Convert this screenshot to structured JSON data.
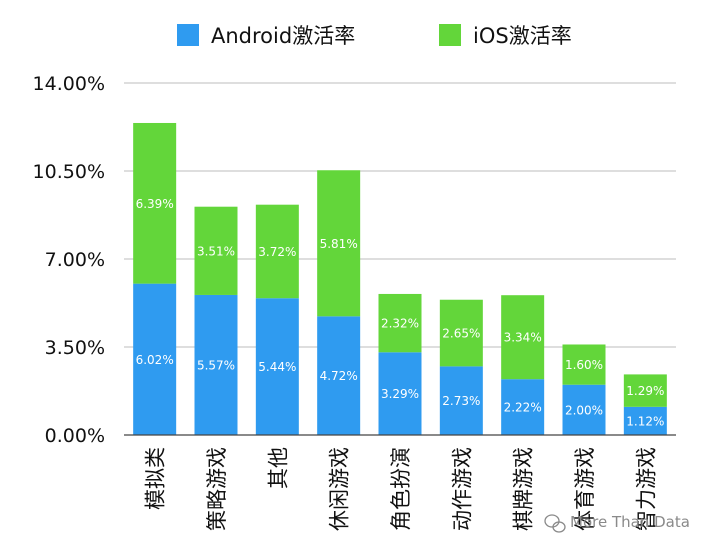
{
  "chart_data": {
    "type": "bar",
    "stacked": true,
    "categories": [
      "模拟类",
      "策略游戏",
      "其他",
      "休闲游戏",
      "角色扮演",
      "动作游戏",
      "棋牌游戏",
      "体育游戏",
      "智力游戏"
    ],
    "series": [
      {
        "name": "Android激活率",
        "color": "#2f9bf0",
        "values": [
          6.02,
          5.57,
          5.44,
          4.72,
          3.29,
          2.73,
          2.22,
          2.0,
          1.12
        ],
        "labels": [
          "6.02%",
          "5.57%",
          "5.44%",
          "4.72%",
          "3.29%",
          "2.73%",
          "2.22%",
          "2.00%",
          "1.12%"
        ]
      },
      {
        "name": "iOS激活率",
        "color": "#63d63a",
        "values": [
          6.39,
          3.51,
          3.72,
          5.81,
          2.32,
          2.65,
          3.34,
          1.6,
          1.29
        ],
        "labels": [
          "6.39%",
          "3.51%",
          "3.72%",
          "5.81%",
          "2.32%",
          "2.65%",
          "3.34%",
          "1.60%",
          "1.29%"
        ]
      }
    ],
    "ylim": [
      0,
      14
    ],
    "yticks": [
      0,
      3.5,
      7,
      10.5,
      14
    ],
    "ytick_labels": [
      "0.00%",
      "3.50%",
      "7.00%",
      "10.50%",
      "14.00%"
    ],
    "grid": true,
    "legend_position": "top-center",
    "title": "",
    "xlabel": "",
    "ylabel": ""
  },
  "watermark": {
    "icon": "wechat-icon",
    "text": "More Than Data"
  }
}
